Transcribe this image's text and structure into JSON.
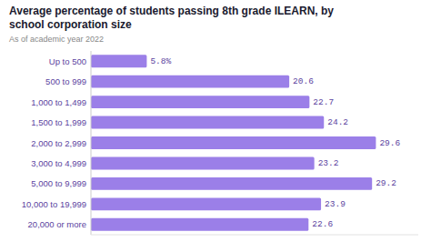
{
  "chart_data": {
    "type": "bar",
    "orientation": "horizontal",
    "title": "Average percentage of students passing 8th grade ILEARN, by\nschool corporation size",
    "subtitle": "As of academic year 2022",
    "categories": [
      "Up to 500",
      "500 to 999",
      "1,000 to 1,499",
      "1,500 to 1,999",
      "2,000 to 2,999",
      "3,000 to 4,999",
      "5,000 to 9,999",
      "10,000 to 19,999",
      "20,000 or more"
    ],
    "values": [
      5.8,
      20.6,
      22.7,
      24.2,
      29.6,
      23.2,
      29.2,
      23.9,
      22.6
    ],
    "value_labels": [
      "5.8%",
      "20.6",
      "22.7",
      "24.2",
      "29.6",
      "23.2",
      "29.2",
      "23.9",
      "22.6"
    ],
    "color": "#9b7fe8",
    "xlim": [
      0,
      34
    ],
    "data_labels": true,
    "tick_labels": "y",
    "grid": false
  }
}
